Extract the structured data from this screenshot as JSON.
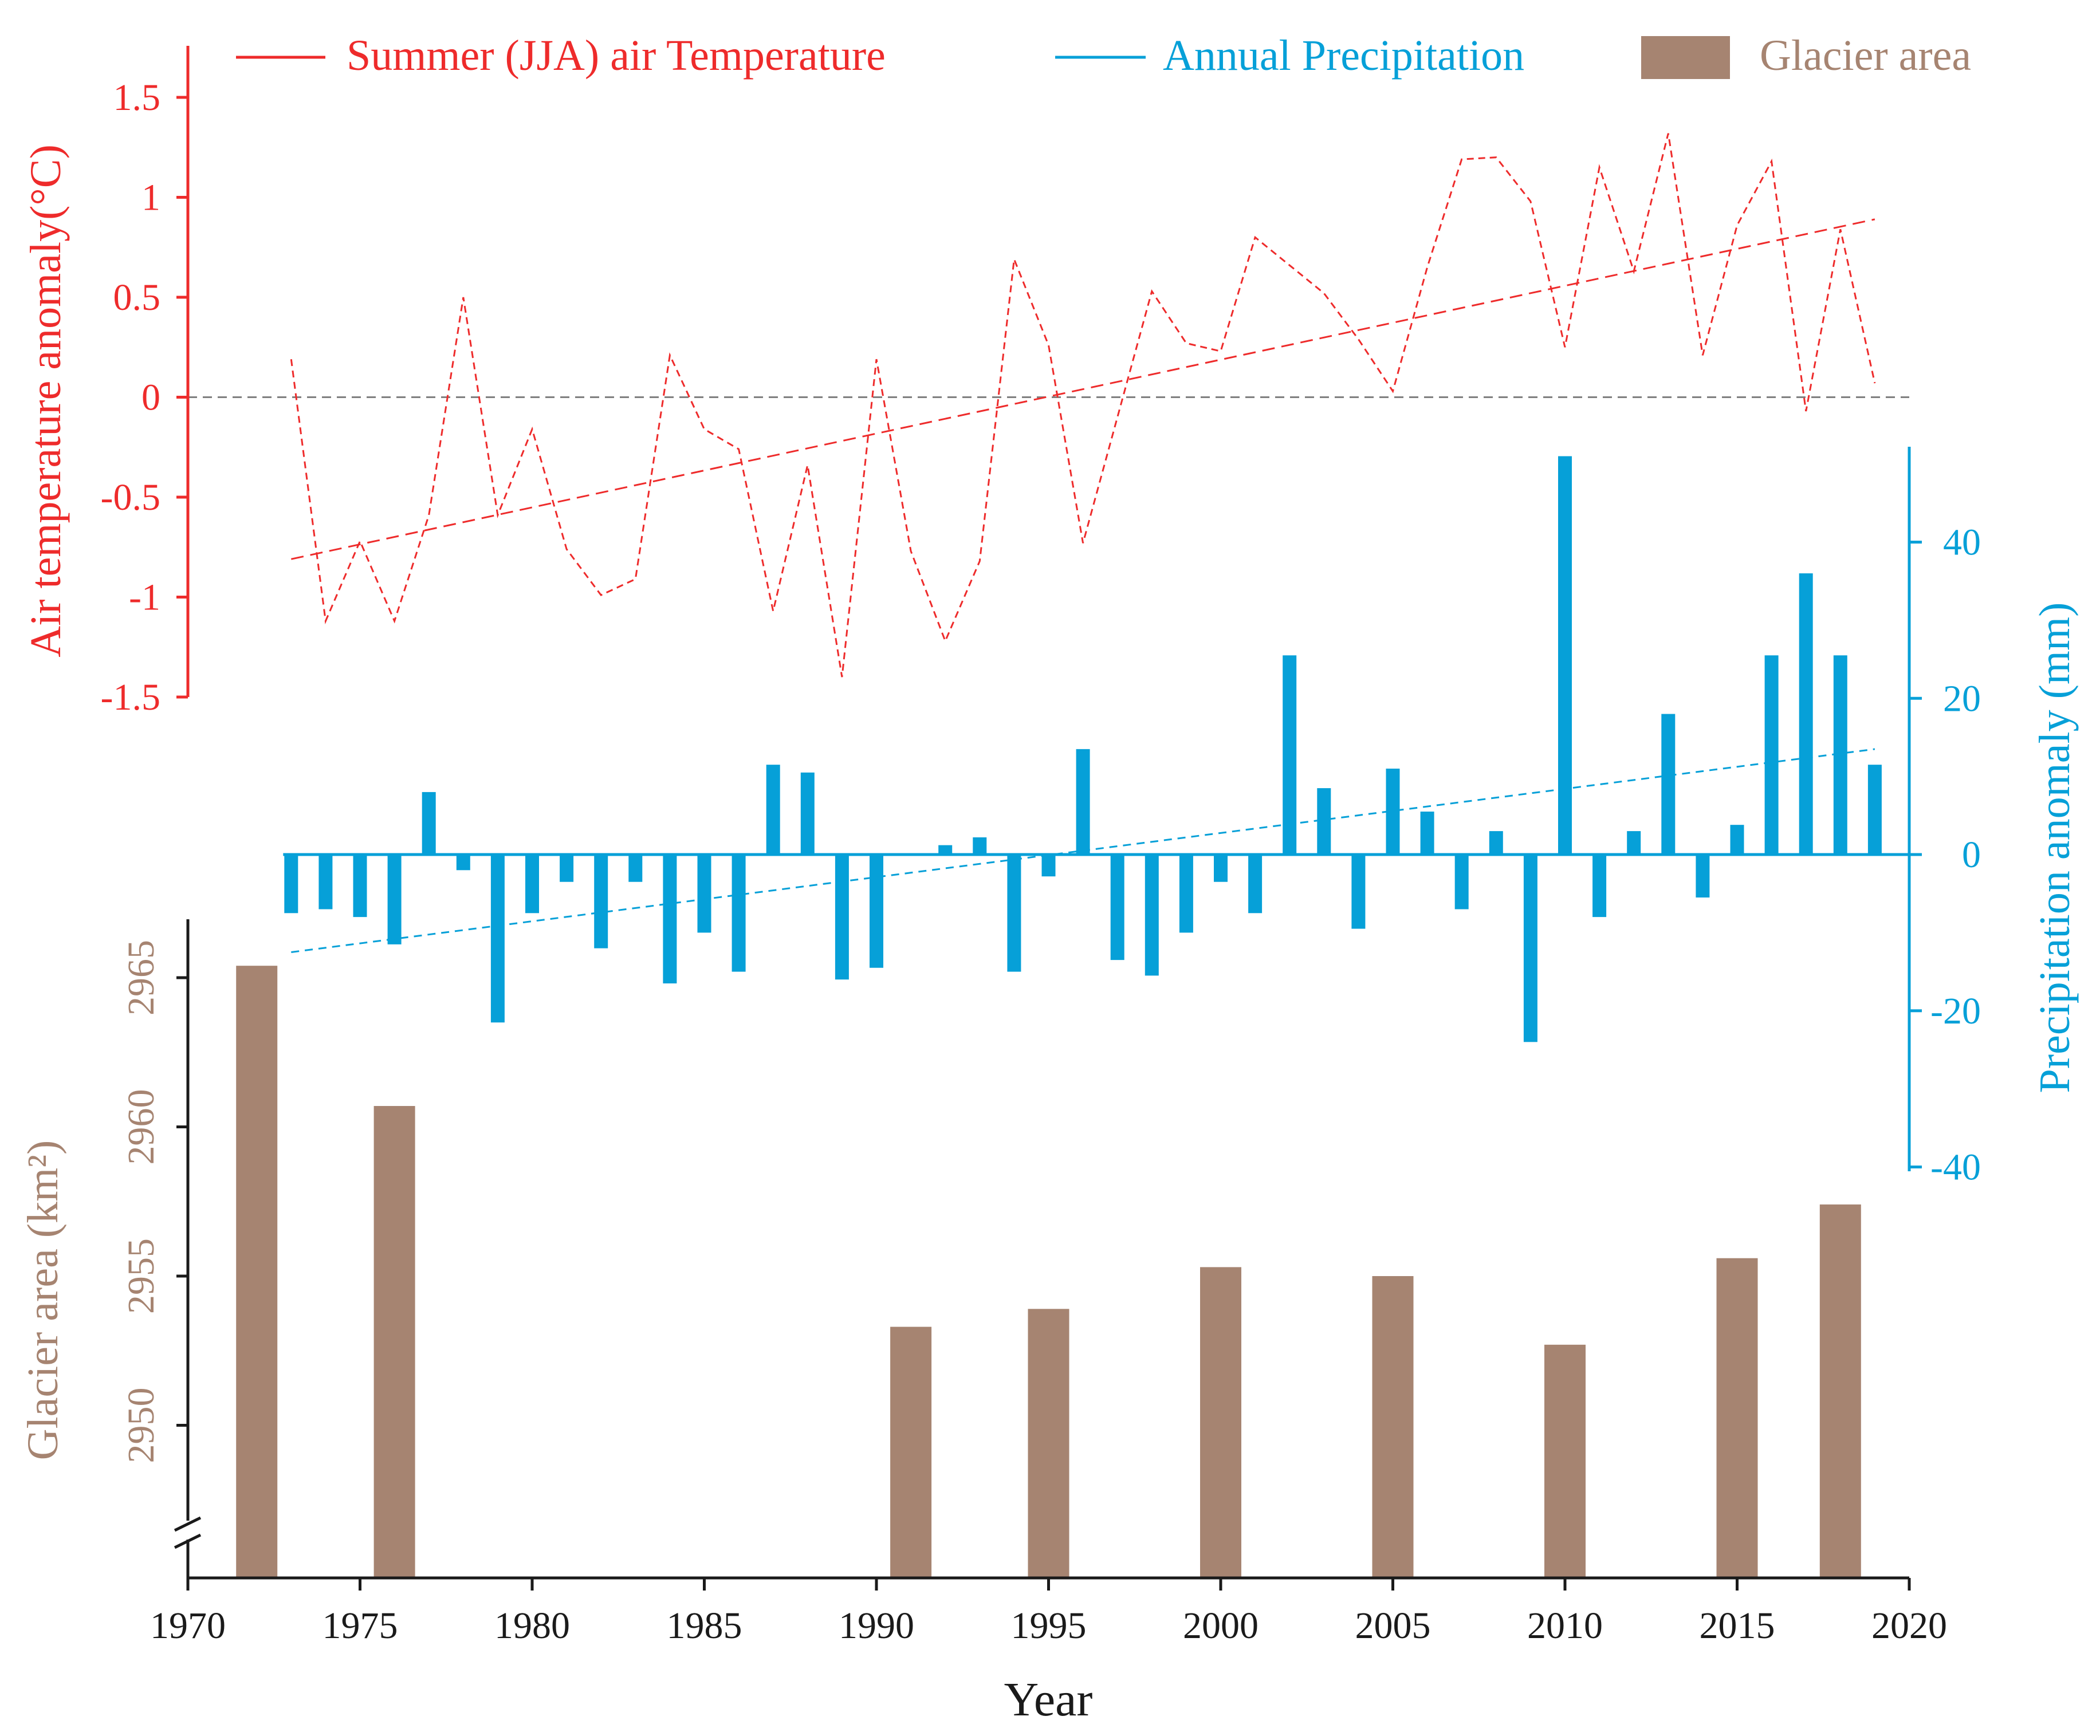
{
  "colors": {
    "temperature": "#ee2b2b",
    "precipitation": "#06a0d8",
    "glacier": "#a68471",
    "axis": "#1a1a1a",
    "zero_line": "#808080"
  },
  "legend": {
    "temperature": "Summer (JJA) air Temperature",
    "precipitation": "Annual Precipitation",
    "glacier": "Glacier area"
  },
  "axes": {
    "x_title": "Year",
    "temp_title": "Air temperature anomaly(°C)",
    "precip_title": "Precipitation anomaly (mm)",
    "glacier_title": "Glacier area (km²)"
  },
  "chart_data": {
    "type": "combo",
    "x_ticks": [
      1970,
      1975,
      1980,
      1985,
      1990,
      1995,
      2000,
      2005,
      2010,
      2015,
      2020
    ],
    "xlim": [
      1970,
      2020
    ],
    "temperature": {
      "name": "Summer (JJA) air Temperature",
      "type": "line",
      "style": "dashed",
      "ylim": [
        -1.5,
        1.5
      ],
      "y_ticks": [
        "1.5",
        "1",
        "0.5",
        "0",
        "-0.5",
        "-1",
        "-1.5"
      ],
      "y_tick_values": [
        1.5,
        1,
        0.5,
        0,
        -0.5,
        -1,
        -1.5
      ],
      "x": [
        1973,
        1974,
        1975,
        1976,
        1977,
        1978,
        1979,
        1980,
        1981,
        1982,
        1983,
        1984,
        1985,
        1986,
        1987,
        1988,
        1989,
        1990,
        1991,
        1992,
        1993,
        1994,
        1995,
        1996,
        1997,
        1998,
        1999,
        2000,
        2001,
        2002,
        2003,
        2004,
        2005,
        2006,
        2007,
        2008,
        2009,
        2010,
        2011,
        2012,
        2013,
        2014,
        2015,
        2016,
        2017,
        2018,
        2019
      ],
      "values": [
        0.19,
        -1.12,
        -0.72,
        -1.12,
        -0.59,
        0.5,
        -0.59,
        -0.16,
        -0.76,
        -0.99,
        -0.91,
        0.21,
        -0.16,
        -0.26,
        -1.07,
        -0.34,
        -1.4,
        0.19,
        -0.77,
        -1.22,
        -0.82,
        0.69,
        0.26,
        -0.73,
        -0.1,
        0.53,
        0.27,
        0.23,
        0.8,
        0.66,
        0.52,
        0.29,
        0.03,
        0.65,
        1.19,
        1.2,
        0.98,
        0.25,
        1.15,
        0.63,
        1.32,
        0.21,
        0.86,
        1.18,
        -0.07,
        0.84,
        0.07
      ],
      "trend": {
        "start": [
          1973,
          -0.81
        ],
        "end": [
          2019,
          0.89
        ]
      }
    },
    "precipitation": {
      "name": "Annual Precipitation",
      "type": "bar",
      "ylim": [
        -40,
        52
      ],
      "y_ticks": [
        "40",
        "20",
        "0",
        "-20",
        "-40"
      ],
      "y_tick_values": [
        40,
        20,
        0,
        -20,
        -40
      ],
      "x": [
        1973,
        1974,
        1975,
        1976,
        1977,
        1978,
        1979,
        1980,
        1981,
        1982,
        1983,
        1984,
        1985,
        1986,
        1987,
        1988,
        1989,
        1990,
        1991,
        1992,
        1993,
        1994,
        1995,
        1996,
        1997,
        1998,
        1999,
        2000,
        2001,
        2002,
        2003,
        2004,
        2005,
        2006,
        2007,
        2008,
        2009,
        2010,
        2011,
        2012,
        2013,
        2014,
        2015,
        2016,
        2017,
        2018,
        2019
      ],
      "values": [
        -7.5,
        -7,
        -8,
        -11.5,
        8,
        -2,
        -21.5,
        -7.5,
        -3.5,
        -12,
        -3.5,
        -16.5,
        -10,
        -15,
        11.5,
        10.5,
        -16,
        -14.5,
        0,
        1.2,
        2.2,
        -15,
        -2.8,
        13.5,
        -13.5,
        -15.5,
        -10,
        -3.5,
        -7.5,
        25.5,
        8.5,
        -9.5,
        11,
        5.5,
        -7,
        3,
        -24,
        51,
        -8,
        3,
        18,
        -5.5,
        3.8,
        25.5,
        36,
        25.5,
        11.5
      ],
      "trend": {
        "start": [
          1973,
          -12.5
        ],
        "end": [
          2019,
          13.5
        ]
      }
    },
    "glacier": {
      "name": "Glacier area",
      "type": "bar",
      "ylim": [
        2945,
        2967
      ],
      "axis_break": true,
      "y_ticks": [
        "2965",
        "2960",
        "2955",
        "2950"
      ],
      "y_tick_values": [
        2965,
        2960,
        2955,
        2950
      ],
      "x": [
        1972,
        1976,
        1991,
        1995,
        2000,
        2005,
        2010,
        2015,
        2018
      ],
      "values": [
        2965.4,
        2960.7,
        2953.3,
        2953.9,
        2955.3,
        2955.0,
        2952.7,
        2955.6,
        2957.4
      ]
    }
  }
}
